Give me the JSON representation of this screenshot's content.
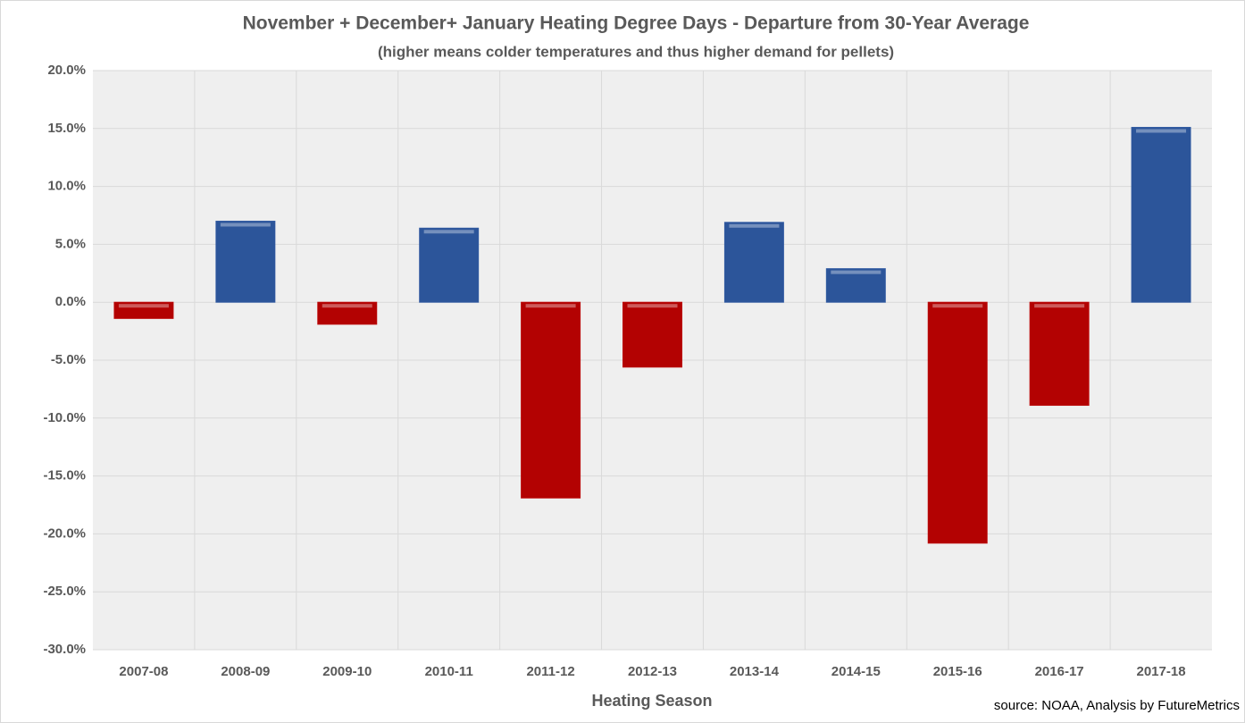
{
  "chart_data": {
    "type": "bar",
    "title": "November + December+ January Heating Degree Days - Departure from 30-Year Average",
    "subtitle": "(higher means colder temperatures and thus higher demand for pellets)",
    "x_label": "Heating Season",
    "annotation": "source: NOAA, Analysis by FutureMetrics",
    "categories": [
      "2007-08",
      "2008-09",
      "2009-10",
      "2010-11",
      "2011-12",
      "2012-13",
      "2013-14",
      "2014-15",
      "2015-16",
      "2016-17",
      "2017-18"
    ],
    "values": [
      -1.4,
      7.0,
      -1.9,
      6.4,
      -16.9,
      -5.6,
      6.9,
      2.9,
      -20.8,
      -8.9,
      15.1
    ],
    "positive_color": "#2e5aa5",
    "negative_color": "#c00000",
    "ylim": [
      -30,
      20
    ],
    "yticks": [
      {
        "value": -30,
        "label": "-30.0%"
      },
      {
        "value": -25,
        "label": "-25.0%"
      },
      {
        "value": -20,
        "label": "-20.0%"
      },
      {
        "value": -15,
        "label": "-15.0%"
      },
      {
        "value": -10,
        "label": "-10.0%"
      },
      {
        "value": -5,
        "label": "-5.0%"
      },
      {
        "value": 0,
        "label": "0.0%"
      },
      {
        "value": 5,
        "label": "5.0%"
      },
      {
        "value": 10,
        "label": "10.0%"
      },
      {
        "value": 15,
        "label": "15.0%"
      },
      {
        "value": 20,
        "label": "20.0%"
      }
    ],
    "grid": true
  }
}
